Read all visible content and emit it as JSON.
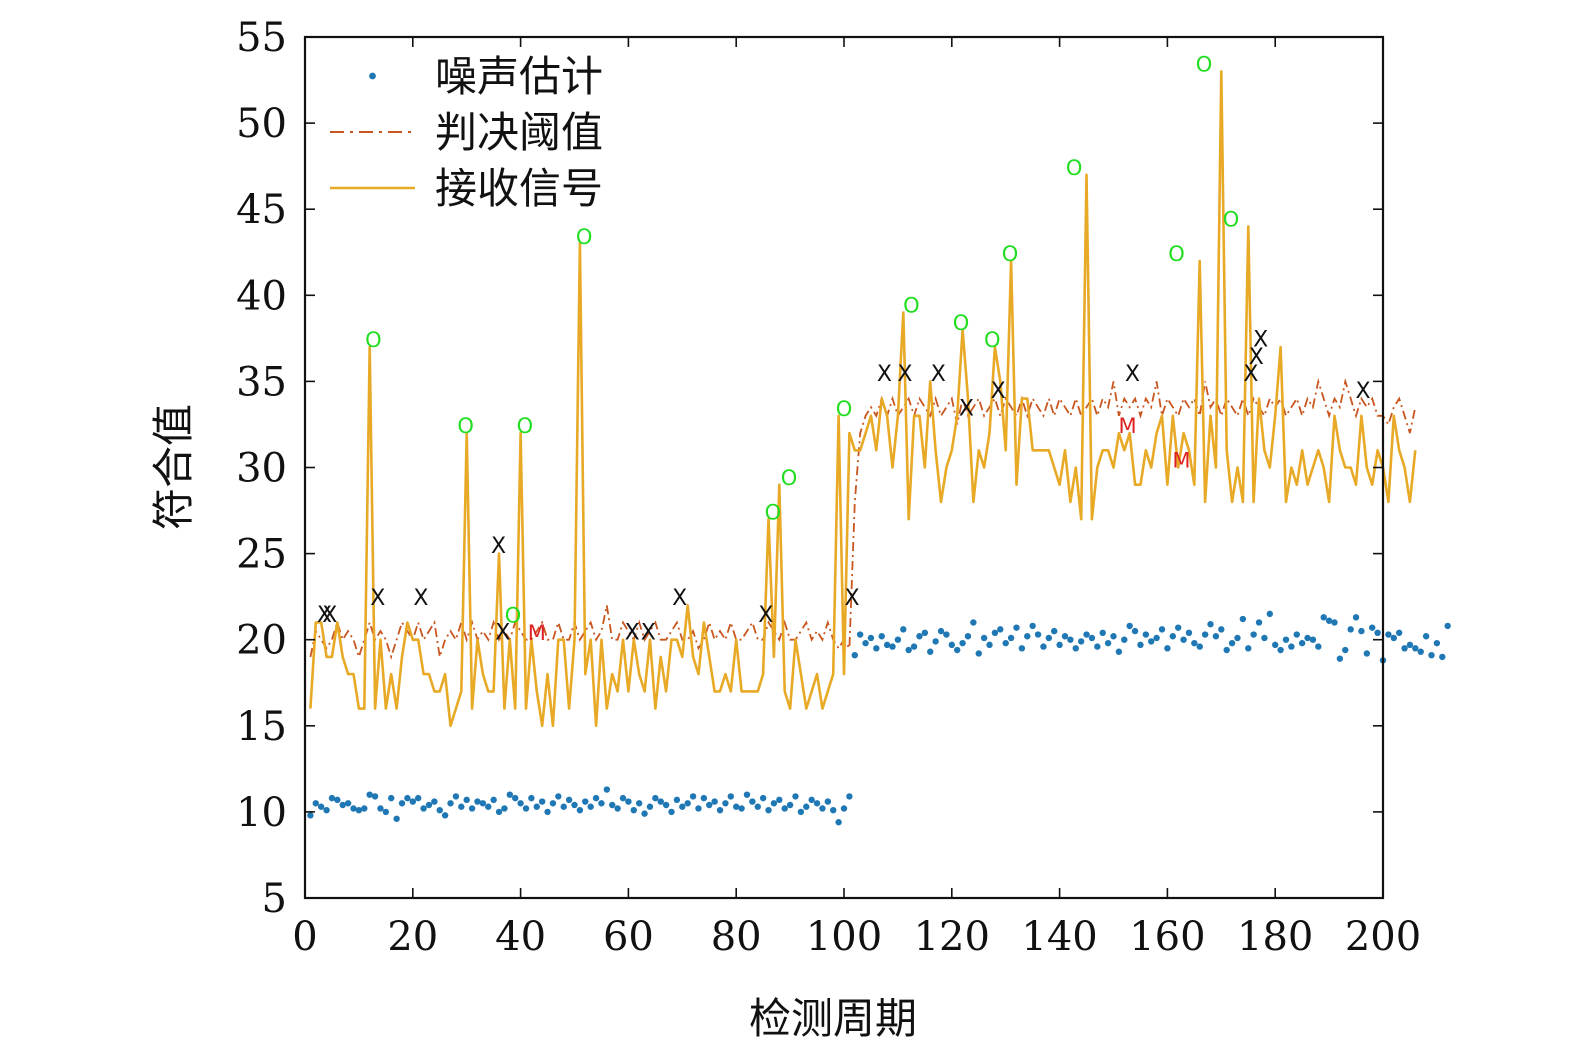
{
  "chart_data": {
    "type": "line",
    "xlabel": "检测周期",
    "ylabel": "符合值",
    "xlim": [
      0,
      200
    ],
    "ylim": [
      5,
      55
    ],
    "xticks": [
      0,
      20,
      40,
      60,
      80,
      100,
      120,
      140,
      160,
      180,
      200
    ],
    "yticks": [
      5,
      10,
      15,
      20,
      25,
      30,
      35,
      40,
      45,
      50,
      55
    ],
    "colors": {
      "noise": "#1f77b4",
      "threshold": "#c8561e",
      "signal": "#e8a926",
      "o": "#22dd22",
      "x": "#111111",
      "m": "#dd2222"
    },
    "legend": {
      "position": "top-left",
      "entries": [
        {
          "name": "噪声估计",
          "style": "dot",
          "color": "#1f77b4"
        },
        {
          "name": "判决阈值",
          "style": "dashdot",
          "color": "#c8561e"
        },
        {
          "name": "接收信号",
          "style": "solid",
          "color": "#e8a926"
        }
      ]
    },
    "series": [
      {
        "name": "噪声估计",
        "style": "dot",
        "values": [
          9.8,
          10.5,
          10.3,
          10.1,
          10.8,
          10.7,
          10.4,
          10.5,
          10.2,
          10.1,
          10.2,
          11.0,
          10.9,
          10.2,
          10.0,
          10.8,
          9.6,
          10.5,
          10.8,
          10.6,
          10.8,
          10.2,
          10.4,
          10.6,
          10.1,
          9.8,
          10.5,
          10.9,
          10.3,
          10.7,
          10.2,
          10.6,
          10.5,
          10.3,
          10.7,
          10.0,
          10.2,
          11.0,
          10.8,
          10.5,
          10.2,
          10.8,
          10.3,
          10.6,
          10.0,
          10.5,
          10.9,
          10.3,
          10.7,
          10.4,
          10.1,
          10.6,
          10.3,
          10.8,
          10.5,
          11.3,
          10.4,
          10.2,
          10.8,
          10.6,
          10.1,
          10.5,
          9.9,
          10.3,
          10.8,
          10.6,
          10.4,
          10.0,
          10.7,
          10.3,
          10.5,
          10.9,
          10.2,
          10.8,
          10.4,
          10.6,
          10.1,
          10.5,
          10.9,
          10.3,
          10.2,
          11.0,
          10.6,
          10.3,
          10.8,
          10.1,
          10.5,
          10.7,
          10.2,
          10.4,
          10.9,
          10.0,
          10.3,
          10.7,
          10.5,
          10.2,
          10.6,
          10.1,
          9.4,
          10.2,
          10.9,
          19.1,
          20.3,
          19.8,
          20.1,
          19.5,
          20.2,
          19.7,
          19.6,
          20.0,
          20.6,
          19.4,
          19.6,
          20.2,
          20.4,
          19.3,
          19.9,
          20.5,
          20.3,
          19.7,
          19.4,
          19.8,
          20.2,
          21.0,
          19.2,
          20.1,
          19.7,
          20.4,
          20.6,
          19.8,
          20.1,
          20.7,
          19.5,
          20.2,
          20.8,
          20.3,
          19.6,
          20.1,
          20.5,
          19.7,
          20.2,
          20.0,
          19.5,
          19.9,
          20.3,
          20.1,
          19.6,
          20.4,
          19.8,
          20.2,
          19.3,
          20.0,
          20.8,
          20.5,
          19.7,
          20.3,
          19.9,
          20.1,
          20.6,
          19.5,
          20.2,
          20.7,
          20.0,
          20.4,
          19.8,
          19.6,
          20.3,
          20.9,
          20.2,
          20.6,
          19.4,
          19.8,
          20.1,
          21.2,
          19.5,
          20.3,
          21.0,
          20.1,
          21.5,
          19.7,
          19.4,
          20.0,
          19.6,
          20.3,
          19.8,
          20.1,
          20.0,
          19.6,
          21.3,
          21.1,
          21.0,
          18.9,
          19.4,
          20.6,
          21.3,
          20.5,
          19.2,
          20.7,
          20.4,
          18.8,
          20.3,
          20.1,
          20.4,
          19.5,
          19.7,
          19.5,
          19.3,
          20.2,
          19.1,
          19.8,
          19.0,
          20.8
        ]
      },
      {
        "name": "判决阈值",
        "style": "dashdot",
        "values": [
          19.0,
          20.5,
          20.0,
          19.5,
          20.0,
          21.0,
          20.0,
          20.5,
          20.0,
          19.0,
          20.0,
          21.0,
          20.0,
          20.5,
          20.0,
          19.0,
          20.0,
          21.0,
          20.5,
          20.0,
          21.0,
          20.0,
          20.5,
          21.0,
          19.0,
          20.0,
          20.5,
          20.0,
          21.0,
          20.0,
          21.0,
          20.0,
          20.5,
          20.0,
          21.0,
          20.0,
          20.5,
          20.0,
          21.0,
          20.5,
          20.0,
          20.0,
          20.5,
          21.0,
          20.0,
          20.0,
          21.0,
          20.0,
          20.0,
          21.0,
          20.0,
          20.5,
          21.0,
          20.0,
          20.5,
          22.0,
          20.0,
          20.0,
          21.0,
          20.5,
          20.0,
          21.0,
          20.0,
          20.5,
          21.0,
          20.0,
          20.0,
          20.5,
          21.0,
          20.0,
          20.0,
          20.5,
          19.5,
          20.0,
          21.0,
          20.0,
          20.5,
          20.0,
          21.0,
          20.0,
          20.0,
          20.5,
          21.0,
          20.0,
          20.0,
          21.0,
          20.5,
          20.0,
          21.0,
          20.0,
          20.0,
          20.5,
          21.0,
          20.0,
          20.5,
          20.0,
          21.0,
          20.0,
          19.5,
          20.0,
          19.5,
          28.0,
          32.0,
          33.0,
          33.5,
          33.0,
          34.0,
          33.0,
          34.0,
          33.0,
          33.5,
          34.0,
          33.0,
          34.0,
          33.5,
          33.0,
          34.0,
          33.0,
          33.5,
          34.0,
          32.5,
          34.0,
          33.0,
          33.5,
          34.0,
          33.0,
          33.5,
          34.0,
          33.0,
          34.0,
          33.5,
          33.0,
          34.0,
          33.0,
          34.0,
          33.5,
          33.0,
          34.0,
          33.0,
          34.0,
          33.5,
          33.0,
          34.0,
          33.0,
          33.5,
          34.0,
          33.0,
          34.0,
          33.5,
          35.0,
          33.0,
          34.0,
          33.5,
          34.0,
          33.0,
          34.0,
          33.5,
          35.0,
          33.0,
          34.0,
          33.5,
          33.0,
          34.0,
          33.5,
          34.0,
          33.0,
          35.0,
          33.5,
          34.0,
          33.0,
          34.0,
          33.5,
          33.0,
          34.0,
          33.0,
          34.0,
          33.5,
          33.0,
          34.0,
          33.5,
          34.0,
          33.0,
          33.5,
          34.0,
          33.0,
          34.0,
          33.5,
          35.0,
          34.0,
          33.0,
          34.0,
          33.5,
          35.0,
          34.0,
          33.0,
          34.0,
          33.5,
          34.0,
          33.0,
          33.0,
          32.5,
          33.5,
          34.0,
          33.0,
          32.0,
          33.5
        ]
      },
      {
        "name": "接收信号",
        "style": "solid",
        "values": [
          16,
          21,
          21,
          19,
          19,
          21,
          19,
          18,
          18,
          16,
          16,
          37,
          16,
          20,
          16,
          18,
          16,
          19,
          21,
          20,
          20,
          18,
          18,
          17,
          17,
          18,
          15,
          16,
          17,
          32,
          16,
          20,
          18,
          17,
          17,
          25,
          16,
          20,
          16,
          32,
          16,
          20,
          17,
          15,
          18,
          15,
          20,
          20,
          16,
          20,
          43,
          18,
          20,
          15,
          20,
          16,
          18,
          17,
          20,
          17,
          20,
          18,
          17,
          20,
          16,
          19,
          17,
          20,
          20,
          19,
          22,
          19,
          18,
          21,
          19,
          17,
          17,
          18,
          17,
          20,
          17,
          17,
          17,
          17,
          18,
          27,
          19,
          29,
          17,
          16,
          20,
          18,
          16,
          17,
          18,
          16,
          17,
          18,
          33,
          18,
          32,
          31,
          31,
          32,
          33,
          31,
          34,
          33,
          30,
          33,
          39,
          27,
          33,
          33,
          30,
          35,
          31,
          28,
          30,
          31,
          33,
          38,
          34,
          28,
          31,
          30,
          32,
          37,
          35,
          31,
          42,
          29,
          34,
          34,
          31,
          31,
          31,
          31,
          30,
          29,
          31,
          28,
          30,
          27,
          47,
          27,
          30,
          31,
          31,
          30,
          32,
          31,
          32,
          29,
          29,
          31,
          30,
          32,
          33,
          29,
          33,
          30,
          32,
          31,
          29,
          42,
          28,
          33,
          30,
          53,
          31,
          28,
          30,
          28,
          44,
          28,
          34,
          31,
          30,
          33,
          37,
          28,
          30,
          29,
          31,
          29,
          30,
          31,
          30,
          28,
          33,
          31,
          30,
          30,
          29,
          33,
          30,
          29,
          31,
          30,
          28,
          33,
          31,
          30,
          28,
          31
        ]
      }
    ],
    "annotations": [
      {
        "text": "O",
        "x": 12.7,
        "y": 37.4,
        "type": "o"
      },
      {
        "text": "O",
        "x": 29.8,
        "y": 32.4,
        "type": "o"
      },
      {
        "text": "O",
        "x": 38.6,
        "y": 21.4,
        "type": "o"
      },
      {
        "text": "O",
        "x": 40.8,
        "y": 32.4,
        "type": "o"
      },
      {
        "text": "O",
        "x": 51.8,
        "y": 43.4,
        "type": "o"
      },
      {
        "text": "O",
        "x": 86.8,
        "y": 27.4,
        "type": "o"
      },
      {
        "text": "O",
        "x": 89.8,
        "y": 29.4,
        "type": "o"
      },
      {
        "text": "O",
        "x": 100.0,
        "y": 33.4,
        "type": "o"
      },
      {
        "text": "O",
        "x": 112.5,
        "y": 39.4,
        "type": "o"
      },
      {
        "text": "O",
        "x": 121.7,
        "y": 38.4,
        "type": "o"
      },
      {
        "text": "O",
        "x": 127.5,
        "y": 37.4,
        "type": "o"
      },
      {
        "text": "O",
        "x": 130.8,
        "y": 42.4,
        "type": "o"
      },
      {
        "text": "O",
        "x": 142.7,
        "y": 47.4,
        "type": "o"
      },
      {
        "text": "O",
        "x": 161.7,
        "y": 42.4,
        "type": "o"
      },
      {
        "text": "O",
        "x": 166.8,
        "y": 53.4,
        "type": "o"
      },
      {
        "text": "O",
        "x": 171.8,
        "y": 44.4,
        "type": "o"
      },
      {
        "text": "X",
        "x": 3.6,
        "y": 21.4,
        "type": "x"
      },
      {
        "text": "X",
        "x": 4.6,
        "y": 21.4,
        "type": "x"
      },
      {
        "text": "X",
        "x": 13.5,
        "y": 22.4,
        "type": "x"
      },
      {
        "text": "X",
        "x": 21.5,
        "y": 22.4,
        "type": "x"
      },
      {
        "text": "X",
        "x": 35.9,
        "y": 25.4,
        "type": "x"
      },
      {
        "text": "X",
        "x": 36.7,
        "y": 20.4,
        "type": "x"
      },
      {
        "text": "X",
        "x": 60.7,
        "y": 20.4,
        "type": "x"
      },
      {
        "text": "X",
        "x": 63.7,
        "y": 20.4,
        "type": "x"
      },
      {
        "text": "X",
        "x": 69.5,
        "y": 22.4,
        "type": "x"
      },
      {
        "text": "X",
        "x": 85.5,
        "y": 21.4,
        "type": "x"
      },
      {
        "text": "X",
        "x": 101.5,
        "y": 22.4,
        "type": "x"
      },
      {
        "text": "X",
        "x": 107.5,
        "y": 35.4,
        "type": "x"
      },
      {
        "text": "X",
        "x": 111.3,
        "y": 35.4,
        "type": "x"
      },
      {
        "text": "X",
        "x": 117.5,
        "y": 35.4,
        "type": "x"
      },
      {
        "text": "X",
        "x": 122.7,
        "y": 33.4,
        "type": "x"
      },
      {
        "text": "X",
        "x": 128.6,
        "y": 34.4,
        "type": "x"
      },
      {
        "text": "X",
        "x": 153.5,
        "y": 35.4,
        "type": "x"
      },
      {
        "text": "X",
        "x": 175.5,
        "y": 35.4,
        "type": "x"
      },
      {
        "text": "X",
        "x": 176.5,
        "y": 36.4,
        "type": "x"
      },
      {
        "text": "X",
        "x": 177.3,
        "y": 37.4,
        "type": "x"
      },
      {
        "text": "X",
        "x": 196.3,
        "y": 34.4,
        "type": "x"
      },
      {
        "text": "M",
        "x": 43.0,
        "y": 20.4,
        "type": "m"
      },
      {
        "text": "M",
        "x": 152.6,
        "y": 32.4,
        "type": "m"
      },
      {
        "text": "M",
        "x": 162.6,
        "y": 30.4,
        "type": "m"
      }
    ]
  }
}
